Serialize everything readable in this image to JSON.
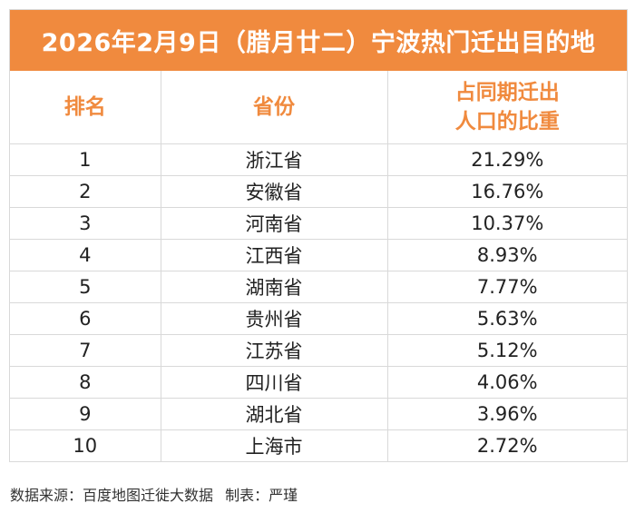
{
  "title": "2026年2月9日（腊月廿二）宁波热门迁出目的地",
  "headers": {
    "rank": "排名",
    "province": "省份",
    "share_line1": "占同期迁出",
    "share_line2": "人口的比重"
  },
  "rows": [
    {
      "rank": "1",
      "province": "浙江省",
      "share": "21.29%"
    },
    {
      "rank": "2",
      "province": "安徽省",
      "share": "16.76%"
    },
    {
      "rank": "3",
      "province": "河南省",
      "share": "10.37%"
    },
    {
      "rank": "4",
      "province": "江西省",
      "share": "8.93%"
    },
    {
      "rank": "5",
      "province": "湖南省",
      "share": "7.77%"
    },
    {
      "rank": "6",
      "province": "贵州省",
      "share": "5.63%"
    },
    {
      "rank": "7",
      "province": "江苏省",
      "share": "5.12%"
    },
    {
      "rank": "8",
      "province": "四川省",
      "share": "4.06%"
    },
    {
      "rank": "9",
      "province": "湖北省",
      "share": "3.96%"
    },
    {
      "rank": "10",
      "province": "上海市",
      "share": "2.72%"
    }
  ],
  "footer": {
    "source": "数据来源：百度地图迁徙大数据",
    "credit": "制表：严瑾"
  },
  "colors": {
    "accent": "#F08A3E",
    "grid": "#d9d9d9"
  }
}
